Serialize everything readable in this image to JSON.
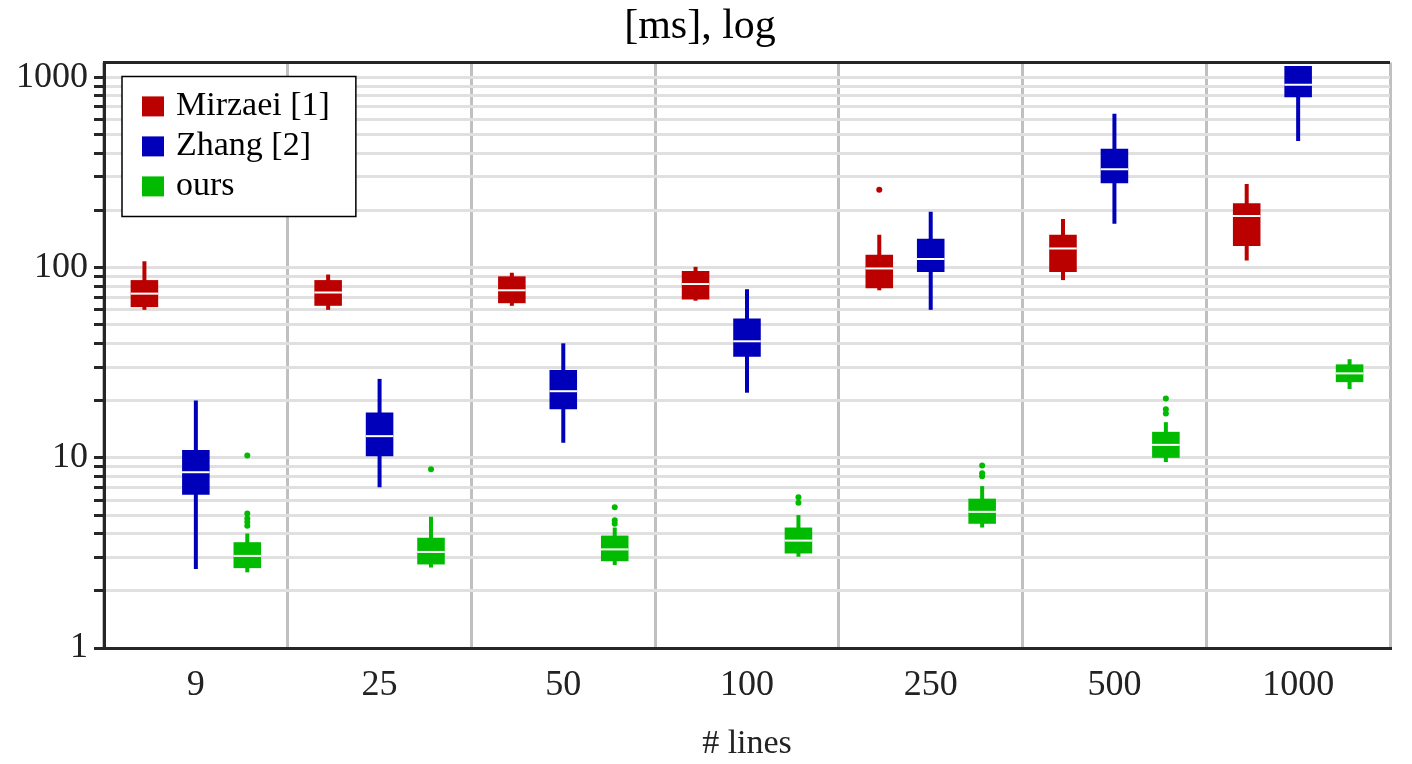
{
  "chart_data": {
    "type": "box",
    "title": "[ms], log",
    "xlabel": "# lines",
    "categories": [
      "9",
      "25",
      "50",
      "100",
      "250",
      "500",
      "1000"
    ],
    "log": true,
    "ylim": [
      1,
      1200
    ],
    "yticks": [
      1,
      {
        "value": 2,
        "label": null
      },
      {
        "value": 3,
        "label": null
      },
      {
        "value": 4,
        "label": null
      },
      {
        "value": 5,
        "label": null
      },
      {
        "value": 6,
        "label": null
      },
      {
        "value": 7,
        "label": null
      },
      {
        "value": 8,
        "label": null
      },
      {
        "value": 9,
        "label": null
      },
      10,
      {
        "value": 20,
        "label": null
      },
      {
        "value": 30,
        "label": null
      },
      {
        "value": 40,
        "label": null
      },
      {
        "value": 50,
        "label": null
      },
      {
        "value": 60,
        "label": null
      },
      {
        "value": 70,
        "label": null
      },
      {
        "value": 80,
        "label": null
      },
      {
        "value": 90,
        "label": null
      },
      100,
      {
        "value": 200,
        "label": null
      },
      {
        "value": 300,
        "label": null
      },
      {
        "value": 400,
        "label": null
      },
      {
        "value": 500,
        "label": null
      },
      {
        "value": 600,
        "label": null
      },
      {
        "value": 700,
        "label": null
      },
      {
        "value": 800,
        "label": null
      },
      {
        "value": 900,
        "label": null
      },
      1000
    ],
    "grid": true,
    "legend": "top left",
    "series": [
      {
        "name": "Mirzaei [1]",
        "color": "#bb0000",
        "boxes": [
          {
            "low": 60,
            "q1": 62,
            "median": 73,
            "q3": 86,
            "high": 108
          },
          {
            "low": 60,
            "q1": 63,
            "median": 74,
            "q3": 86,
            "high": 92
          },
          {
            "low": 63,
            "q1": 65,
            "median": 76,
            "q3": 90,
            "high": 94
          },
          {
            "low": 67,
            "q1": 68,
            "median": 82,
            "q3": 96,
            "high": 101
          },
          {
            "low": 76,
            "q1": 78,
            "median": 99,
            "q3": 117,
            "high": 149,
            "outliers": [
              257
            ]
          },
          {
            "low": 86,
            "q1": 95,
            "median": 126,
            "q3": 149,
            "high": 180
          },
          {
            "low": 109,
            "q1": 130,
            "median": 187,
            "q3": 218,
            "high": 275
          }
        ]
      },
      {
        "name": "Zhang [2]",
        "color": "#0000bb",
        "boxes": [
          {
            "low": 2.6,
            "q1": 6.4,
            "median": 8.4,
            "q3": 11,
            "high": 20
          },
          {
            "low": 7,
            "q1": 10.2,
            "median": 13,
            "q3": 17.3,
            "high": 26
          },
          {
            "low": 12,
            "q1": 18,
            "median": 22.4,
            "q3": 29,
            "high": 40
          },
          {
            "low": 22,
            "q1": 34,
            "median": 41,
            "q3": 54,
            "high": 77
          },
          {
            "low": 60,
            "q1": 95,
            "median": 111,
            "q3": 142,
            "high": 197
          },
          {
            "low": 170,
            "q1": 278,
            "median": 329,
            "q3": 422,
            "high": 644
          },
          {
            "low": 463,
            "q1": 787,
            "median": 916,
            "q3": 1150,
            "high": 1150
          }
        ]
      },
      {
        "name": "ours",
        "color": "#00bb00",
        "boxes": [
          {
            "low": 2.5,
            "q1": 2.63,
            "median": 3.05,
            "q3": 3.6,
            "high": 4.0,
            "outliers": [
              4.4,
              4.6,
              4.8,
              5.1,
              10.3
            ]
          },
          {
            "low": 2.65,
            "q1": 2.75,
            "median": 3.2,
            "q3": 3.8,
            "high": 4.9,
            "outliers": [
              8.7
            ]
          },
          {
            "low": 2.73,
            "q1": 2.86,
            "median": 3.3,
            "q3": 3.9,
            "high": 4.3,
            "outliers": [
              4.5,
              4.7,
              5.5
            ]
          },
          {
            "low": 3.02,
            "q1": 3.14,
            "median": 3.67,
            "q3": 4.3,
            "high": 5.0,
            "outliers": [
              5.8,
              6.2
            ]
          },
          {
            "low": 4.3,
            "q1": 4.5,
            "median": 5.2,
            "q3": 6.1,
            "high": 7.1,
            "outliers": [
              8.0,
              8.3,
              9.1
            ]
          },
          {
            "low": 9.5,
            "q1": 10,
            "median": 11.7,
            "q3": 13.7,
            "high": 15.4,
            "outliers": [
              17.1,
              18,
              20.5
            ]
          },
          {
            "low": 23,
            "q1": 25,
            "median": 27.8,
            "q3": 31,
            "high": 33
          }
        ]
      }
    ]
  }
}
